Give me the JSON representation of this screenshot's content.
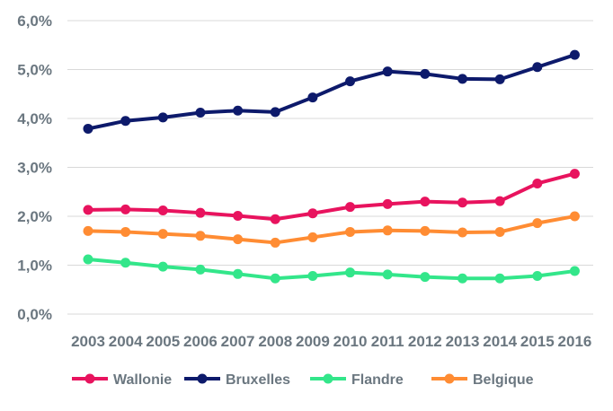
{
  "chart_data": {
    "type": "line",
    "title": "",
    "xlabel": "",
    "ylabel": "",
    "x": [
      "2003",
      "2004",
      "2005",
      "2006",
      "2007",
      "2008",
      "2009",
      "2010",
      "2011",
      "2012",
      "2013",
      "2014",
      "2015",
      "2016"
    ],
    "ylim": [
      0,
      6
    ],
    "y_ticks": [
      "0,0%",
      "1,0%",
      "2,0%",
      "3,0%",
      "4,0%",
      "5,0%",
      "6,0%"
    ],
    "grid": true,
    "legend_position": "bottom",
    "series": [
      {
        "name": "Wallonie",
        "color": "#e8135e",
        "values": [
          2.13,
          2.14,
          2.12,
          2.07,
          2.01,
          1.94,
          2.06,
          2.19,
          2.25,
          2.3,
          2.28,
          2.31,
          2.67,
          2.87
        ]
      },
      {
        "name": "Bruxelles",
        "color": "#0d1a6b",
        "values": [
          3.79,
          3.95,
          4.02,
          4.12,
          4.16,
          4.13,
          4.43,
          4.76,
          4.96,
          4.91,
          4.81,
          4.8,
          5.05,
          5.3
        ]
      },
      {
        "name": "Flandre",
        "color": "#33e68a",
        "values": [
          1.12,
          1.05,
          0.97,
          0.91,
          0.82,
          0.73,
          0.78,
          0.85,
          0.81,
          0.76,
          0.73,
          0.73,
          0.78,
          0.88
        ]
      },
      {
        "name": "Belgique",
        "color": "#ff8c33",
        "values": [
          1.7,
          1.68,
          1.64,
          1.6,
          1.53,
          1.46,
          1.57,
          1.68,
          1.71,
          1.7,
          1.67,
          1.68,
          1.86,
          2.0
        ]
      }
    ]
  }
}
